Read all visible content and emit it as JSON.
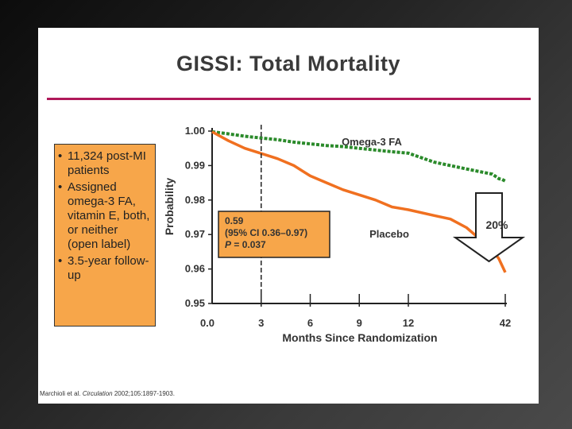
{
  "slide": {
    "title": "GISSI: Total Mortality",
    "bullets": [
      "11,324 post-MI patients",
      "Assigned omega-3 FA, vitamin E, both, or neither (open label)",
      "3.5-year follow-up"
    ],
    "citation": {
      "authors": "Marchioli et al.",
      "journal": "Circulation",
      "ref": "2002;105:1897-1903."
    }
  },
  "colors": {
    "title_rule": "#b0195a",
    "bullet_box": "#f7a64a",
    "placebo_line": "#f07020",
    "omega_line": "#2a8a2a",
    "annotation_box": "#f7a64a"
  },
  "chart_data": {
    "type": "line",
    "title": "",
    "xlabel": "Months Since Randomization",
    "ylabel": "Probability",
    "x_ticks": [
      0,
      3,
      6,
      9,
      12,
      42
    ],
    "x_tick_labels": [
      "0.0",
      "3",
      "6",
      "9",
      "12",
      "42"
    ],
    "y_ticks": [
      0.95,
      0.96,
      0.97,
      0.98,
      0.99,
      1.0
    ],
    "y_tick_labels": [
      "0.95",
      "0.96",
      "0.97",
      "0.98",
      "0.99",
      "1.00"
    ],
    "ylim": [
      0.95,
      1.0
    ],
    "vertical_marker_month": 3,
    "series": [
      {
        "name": "Omega-3 FA",
        "style": "dashed",
        "x": [
          0,
          1,
          2,
          3,
          4,
          5,
          6,
          7,
          8,
          9,
          10,
          11,
          12,
          20,
          30,
          38,
          40,
          41,
          42
        ],
        "y": [
          0.9998,
          0.9992,
          0.9985,
          0.998,
          0.9975,
          0.9968,
          0.9963,
          0.9958,
          0.9955,
          0.995,
          0.9945,
          0.994,
          0.9936,
          0.991,
          0.989,
          0.9875,
          0.9862,
          0.986,
          0.9855
        ]
      },
      {
        "name": "Placebo",
        "style": "solid",
        "x": [
          0,
          1,
          2,
          3,
          4,
          5,
          6,
          7,
          8,
          9,
          10,
          11,
          12,
          20,
          25,
          30,
          35,
          38,
          40,
          42
        ],
        "y": [
          0.9998,
          0.9972,
          0.995,
          0.9935,
          0.992,
          0.99,
          0.987,
          0.985,
          0.983,
          0.9815,
          0.98,
          0.978,
          0.9772,
          0.9755,
          0.9745,
          0.972,
          0.968,
          0.9655,
          0.963,
          0.959
        ]
      }
    ],
    "annotations": {
      "stats_box": [
        "0.59",
        "(95% CI 0.36–0.97)",
        "P = 0.037"
      ],
      "reduction_arrow": "20%"
    }
  }
}
